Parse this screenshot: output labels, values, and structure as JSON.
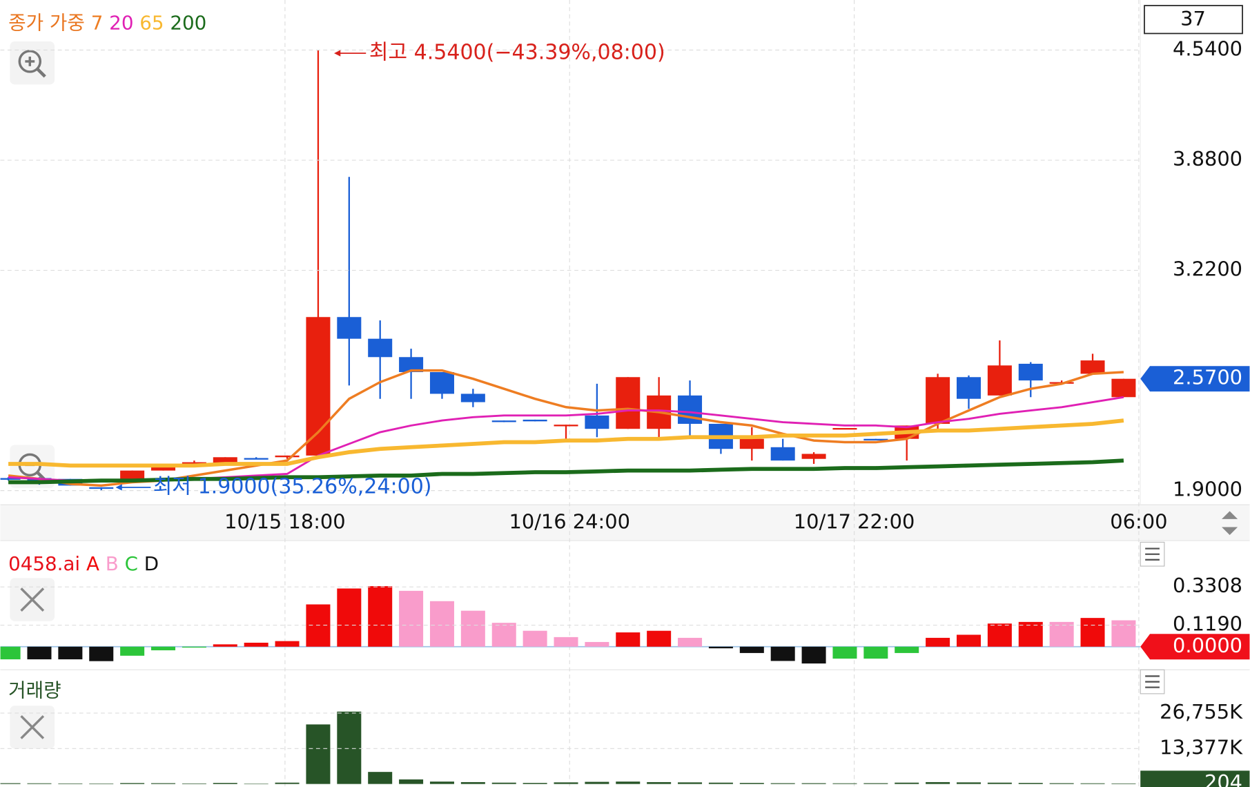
{
  "chart_data": [
    {
      "type": "candlestick",
      "legend_title": "종가 가중",
      "counter": 37,
      "x_labels": [
        "10/15 18:00",
        "10/16 24:00",
        "10/17 22:00",
        "06:00"
      ],
      "open": [
        1.975,
        1.975,
        1.97,
        1.92,
        1.97,
        2.02,
        2.06,
        2.06,
        2.095,
        2.1,
        2.11,
        2.94,
        2.81,
        2.7,
        2.61,
        2.48,
        2.32,
        2.325,
        2.29,
        2.35,
        2.27,
        2.27,
        2.47,
        2.3,
        2.15,
        2.16,
        2.09,
        2.27,
        2.21,
        2.21,
        2.3,
        2.58,
        2.47,
        2.66,
        2.545,
        2.6,
        2.46
      ],
      "high": [
        1.98,
        1.98,
        1.97,
        1.92,
        2.02,
        2.05,
        2.08,
        2.1,
        2.1,
        2.11,
        4.54,
        3.78,
        2.92,
        2.75,
        2.61,
        2.51,
        2.32,
        2.325,
        2.295,
        2.54,
        2.58,
        2.58,
        2.56,
        2.3,
        2.28,
        2.21,
        2.13,
        2.275,
        2.21,
        2.29,
        2.6,
        2.59,
        2.8,
        2.67,
        2.56,
        2.72,
        2.57
      ],
      "low": [
        1.96,
        1.935,
        1.93,
        1.9,
        1.96,
        2.02,
        2.06,
        2.06,
        2.09,
        2.09,
        2.11,
        2.53,
        2.45,
        2.45,
        2.45,
        2.4,
        2.31,
        2.315,
        2.2,
        2.22,
        2.27,
        2.21,
        2.22,
        2.12,
        2.08,
        2.08,
        2.06,
        2.27,
        2.205,
        2.08,
        2.25,
        2.39,
        2.47,
        2.46,
        2.54,
        2.6,
        2.46
      ],
      "close": [
        1.965,
        1.94,
        1.93,
        1.915,
        2.02,
        2.05,
        2.07,
        2.1,
        2.09,
        2.11,
        2.94,
        2.81,
        2.7,
        2.61,
        2.48,
        2.43,
        2.315,
        2.315,
        2.295,
        2.27,
        2.58,
        2.47,
        2.3,
        2.15,
        2.21,
        2.08,
        2.12,
        2.275,
        2.205,
        2.29,
        2.58,
        2.45,
        2.65,
        2.56,
        2.55,
        2.68,
        2.57
      ],
      "up_color": "#e8200e",
      "down_color": "#1a5fd6",
      "series": [
        {
          "name": "7",
          "color": "#ee7d22",
          "values": [
            1.99,
            1.97,
            1.94,
            1.93,
            1.95,
            1.96,
            1.99,
            2.02,
            2.05,
            2.08,
            2.25,
            2.45,
            2.55,
            2.62,
            2.62,
            2.57,
            2.51,
            2.45,
            2.4,
            2.38,
            2.39,
            2.37,
            2.34,
            2.31,
            2.29,
            2.24,
            2.2,
            2.19,
            2.19,
            2.21,
            2.3,
            2.38,
            2.46,
            2.51,
            2.54,
            2.6,
            2.61
          ]
        },
        {
          "name": "20",
          "color": "#e020b4",
          "values": [
            1.98,
            1.97,
            1.96,
            1.96,
            1.96,
            1.96,
            1.97,
            1.98,
            1.99,
            2.0,
            2.11,
            2.18,
            2.25,
            2.29,
            2.32,
            2.34,
            2.35,
            2.35,
            2.35,
            2.36,
            2.38,
            2.38,
            2.37,
            2.35,
            2.33,
            2.31,
            2.3,
            2.29,
            2.29,
            2.28,
            2.31,
            2.33,
            2.36,
            2.38,
            2.4,
            2.43,
            2.46
          ]
        },
        {
          "name": "65",
          "color": "#f8b830",
          "values": [
            2.06,
            2.06,
            2.05,
            2.05,
            2.05,
            2.05,
            2.05,
            2.06,
            2.06,
            2.06,
            2.1,
            2.13,
            2.15,
            2.16,
            2.17,
            2.18,
            2.19,
            2.19,
            2.2,
            2.2,
            2.21,
            2.21,
            2.22,
            2.22,
            2.22,
            2.23,
            2.23,
            2.23,
            2.24,
            2.25,
            2.26,
            2.26,
            2.27,
            2.28,
            2.29,
            2.3,
            2.32
          ]
        },
        {
          "name": "200",
          "color": "#1b6b1b",
          "values": [
            1.95,
            1.95,
            1.955,
            1.96,
            1.96,
            1.965,
            1.97,
            1.97,
            1.975,
            1.98,
            1.98,
            1.985,
            1.99,
            1.99,
            2.0,
            2.0,
            2.005,
            2.01,
            2.01,
            2.015,
            2.02,
            2.02,
            2.02,
            2.025,
            2.03,
            2.03,
            2.03,
            2.035,
            2.035,
            2.04,
            2.045,
            2.05,
            2.055,
            2.06,
            2.065,
            2.07,
            2.08
          ]
        }
      ],
      "ylim": [
        1.82,
        4.84
      ],
      "yticks": [
        {
          "value": 4.54,
          "label": "4.5400"
        },
        {
          "value": 3.88,
          "label": "3.8800"
        },
        {
          "value": 3.22,
          "label": "3.2200"
        },
        {
          "value": 1.9,
          "label": "1.9000"
        }
      ],
      "last_value": {
        "value": 2.57,
        "label": "2.5700"
      },
      "annotations": {
        "high": "최고 4.5400(−43.39%,08:00)",
        "low": "최저 1.9000(35.26%,24:00)"
      },
      "grid": true
    },
    {
      "type": "bar",
      "title": "0458.ai",
      "series": [
        {
          "name": "A",
          "color": "#f00a0a",
          "values": [
            null,
            null,
            null,
            null,
            null,
            null,
            null,
            0.013,
            0.022,
            0.031,
            0.234,
            0.322,
            0.335,
            null,
            null,
            null,
            null,
            null,
            null,
            null,
            0.079,
            0.088,
            null,
            null,
            null,
            null,
            null,
            null,
            null,
            null,
            0.049,
            0.066,
            0.128,
            0.137,
            null,
            0.159,
            null
          ]
        },
        {
          "name": "B",
          "color": "#f99ccb",
          "values": [
            null,
            null,
            null,
            null,
            null,
            null,
            null,
            null,
            null,
            null,
            null,
            null,
            null,
            0.309,
            0.252,
            0.199,
            0.132,
            0.088,
            0.053,
            0.026,
            null,
            null,
            0.049,
            null,
            null,
            null,
            null,
            null,
            null,
            null,
            null,
            null,
            null,
            null,
            0.137,
            null,
            0.146
          ]
        },
        {
          "name": "C",
          "color": "#2cc53a",
          "values": [
            -0.07,
            null,
            null,
            null,
            -0.05,
            -0.02,
            -0.005,
            null,
            null,
            null,
            null,
            null,
            null,
            null,
            null,
            null,
            null,
            null,
            null,
            null,
            null,
            null,
            null,
            null,
            null,
            null,
            null,
            -0.066,
            -0.066,
            -0.035,
            null,
            null,
            null,
            null,
            null,
            null,
            null
          ]
        },
        {
          "name": "D",
          "color": "#111111",
          "values": [
            null,
            -0.07,
            -0.07,
            -0.08,
            null,
            null,
            null,
            null,
            null,
            null,
            null,
            null,
            null,
            null,
            null,
            null,
            null,
            null,
            null,
            null,
            null,
            null,
            null,
            -0.009,
            -0.035,
            -0.079,
            -0.093,
            null,
            null,
            null,
            null,
            null,
            null,
            null,
            null,
            null,
            null
          ]
        }
      ],
      "ylim": [
        -0.119,
        0.534
      ],
      "yticks": [
        {
          "value": 0.3308,
          "label": "0.3308"
        },
        {
          "value": 0.119,
          "label": "0.1190"
        }
      ],
      "zero_label": {
        "value": 0,
        "label": "0.0000"
      },
      "grid": true
    },
    {
      "type": "bar",
      "title": "거래량",
      "color": "#275427",
      "values": [
        300,
        250,
        200,
        180,
        350,
        300,
        200,
        400,
        150,
        500,
        22480,
        27320,
        4550,
        1710,
        900,
        700,
        500,
        400,
        600,
        800,
        900,
        700,
        600,
        500,
        400,
        300,
        300,
        250,
        300,
        500,
        700,
        600,
        500,
        400,
        300,
        250,
        204
      ],
      "ylim": [
        -1140,
        40700
      ],
      "yticks": [
        {
          "value": 26755,
          "label": "26,755K"
        },
        {
          "value": 13377,
          "label": "13,377K"
        }
      ],
      "last_value": 204,
      "grid": true
    }
  ]
}
